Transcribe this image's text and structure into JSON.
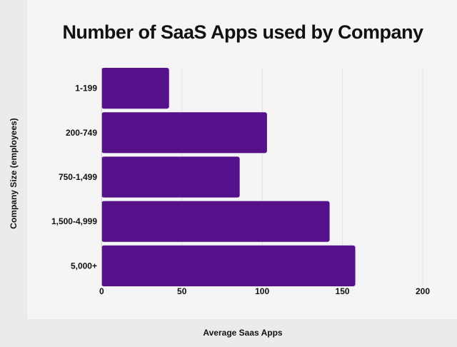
{
  "chart_data": {
    "type": "bar",
    "orientation": "horizontal",
    "title": "Number of SaaS Apps used by Company",
    "xlabel": "Average Saas Apps",
    "ylabel": "Company Size (employees)",
    "categories": [
      "1-199",
      "200-749",
      "750-1,499",
      "1,500-4,999",
      "5,000+"
    ],
    "values": [
      42,
      103,
      86,
      142,
      158
    ],
    "xlim": [
      0,
      200
    ],
    "xticks": [
      0,
      50,
      100,
      150,
      200
    ],
    "grid": true,
    "bar_color": "#55118a"
  }
}
